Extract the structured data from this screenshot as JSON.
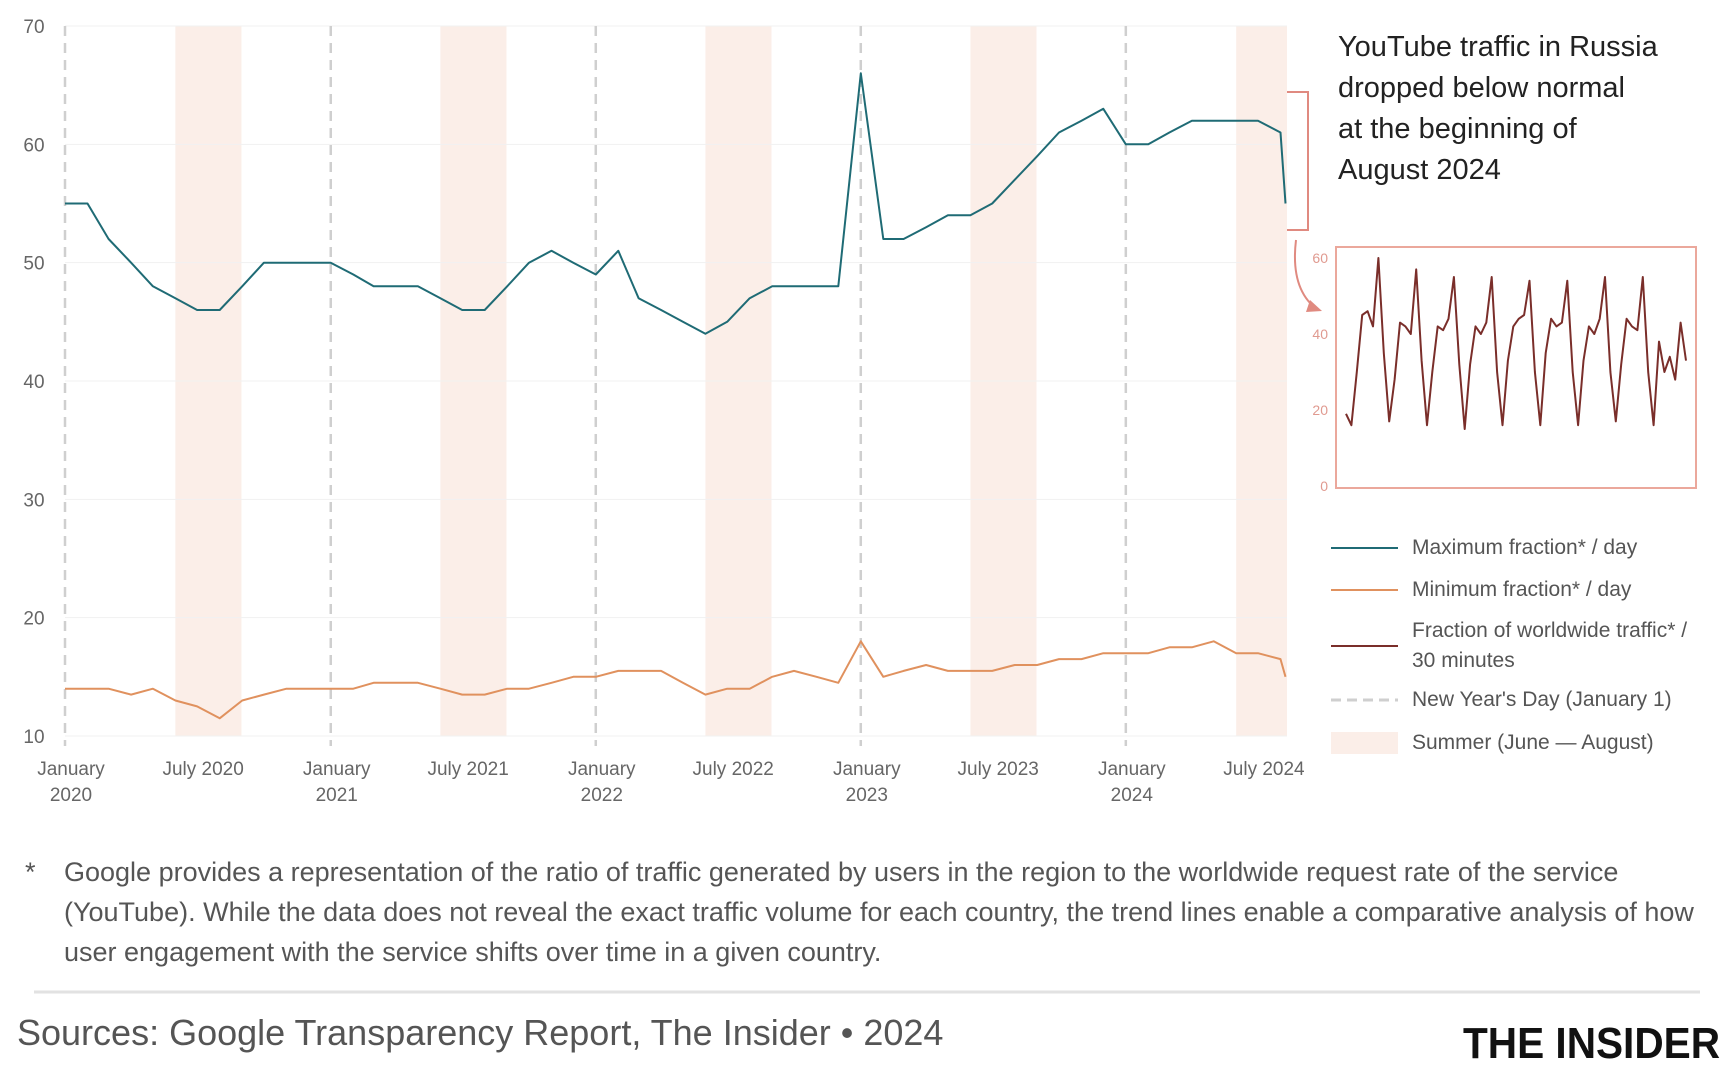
{
  "chart_data": [
    {
      "type": "line",
      "title": [
        "YouTube traffic in Russia",
        "dropped below normal",
        "at the beginning of",
        "August 2024"
      ],
      "x": [
        "2020-01-01",
        "2020-02-01",
        "2020-03-01",
        "2020-04-01",
        "2020-05-01",
        "2020-06-01",
        "2020-07-01",
        "2020-08-01",
        "2020-09-01",
        "2020-10-01",
        "2020-11-01",
        "2020-12-01",
        "2021-01-01",
        "2021-02-01",
        "2021-03-01",
        "2021-04-01",
        "2021-05-01",
        "2021-06-01",
        "2021-07-01",
        "2021-08-01",
        "2021-09-01",
        "2021-10-01",
        "2021-11-01",
        "2021-12-01",
        "2022-01-01",
        "2022-02-01",
        "2022-03-01",
        "2022-04-01",
        "2022-05-01",
        "2022-06-01",
        "2022-07-01",
        "2022-08-01",
        "2022-09-01",
        "2022-10-01",
        "2022-11-01",
        "2022-12-01",
        "2023-01-01",
        "2023-02-01",
        "2023-03-01",
        "2023-04-01",
        "2023-05-01",
        "2023-06-01",
        "2023-07-01",
        "2023-08-01",
        "2023-09-01",
        "2023-10-01",
        "2023-11-01",
        "2023-12-01",
        "2024-01-01",
        "2024-02-01",
        "2024-03-01",
        "2024-04-01",
        "2024-05-01",
        "2024-06-01",
        "2024-07-01",
        "2024-08-01",
        "2024-08-08"
      ],
      "series": [
        {
          "name": "Maximum fraction* / day",
          "color": "#1f6b75",
          "values": [
            55,
            55,
            52,
            50,
            48,
            47,
            46,
            46,
            48,
            50,
            50,
            50,
            50,
            49,
            48,
            48,
            48,
            47,
            46,
            46,
            48,
            50,
            51,
            50,
            49,
            51,
            47,
            46,
            45,
            44,
            45,
            47,
            48,
            48,
            48,
            48,
            66,
            52,
            52,
            53,
            54,
            54,
            55,
            57,
            59,
            61,
            62,
            63,
            60,
            60,
            61,
            62,
            62,
            62,
            62,
            61,
            55
          ]
        },
        {
          "name": "Minimum fraction* / day",
          "color": "#e0915e",
          "values": [
            14,
            14,
            14,
            13.5,
            14,
            13,
            12.5,
            11.5,
            13,
            13.5,
            14,
            14,
            14,
            14,
            14.5,
            14.5,
            14.5,
            14,
            13.5,
            13.5,
            14,
            14,
            14.5,
            15,
            15,
            15.5,
            15.5,
            15.5,
            14.5,
            13.5,
            14,
            14,
            15,
            15.5,
            15,
            14.5,
            18,
            15,
            15.5,
            16,
            15.5,
            15.5,
            15.5,
            16,
            16,
            16.5,
            16.5,
            17,
            17,
            17,
            17.5,
            17.5,
            18,
            17,
            17,
            16.5,
            15
          ]
        }
      ],
      "xlim": [
        "2020-01-01",
        "2024-08-10"
      ],
      "xticks": [
        {
          "value": "2020-01-01",
          "label": "January 2020"
        },
        {
          "value": "2020-07-01",
          "label": "July 2020"
        },
        {
          "value": "2021-01-01",
          "label": "January 2021"
        },
        {
          "value": "2021-07-01",
          "label": "July 2021"
        },
        {
          "value": "2022-01-01",
          "label": "January 2022"
        },
        {
          "value": "2022-07-01",
          "label": "July 2022"
        },
        {
          "value": "2023-01-01",
          "label": "January 2023"
        },
        {
          "value": "2023-07-01",
          "label": "July 2023"
        },
        {
          "value": "2024-01-01",
          "label": "January 2024"
        },
        {
          "value": "2024-07-01",
          "label": "July 2024"
        }
      ],
      "ylim": [
        10,
        70
      ],
      "yticks": [
        10,
        20,
        30,
        40,
        50,
        60,
        70
      ],
      "grid": true,
      "new_year_name": "New Year's Day (January 1)",
      "new_year_lines": [
        "2020-01-01",
        "2021-01-01",
        "2022-01-01",
        "2023-01-01",
        "2024-01-01"
      ],
      "summer_name": "Summer (June — August)",
      "summers": [
        [
          "2020-06-01",
          "2020-08-31"
        ],
        [
          "2021-06-01",
          "2021-08-31"
        ],
        [
          "2022-06-01",
          "2022-08-31"
        ],
        [
          "2023-06-01",
          "2023-08-31"
        ],
        [
          "2024-06-01",
          "2024-08-31"
        ]
      ],
      "summer_color": "#fbeee8",
      "footnote": {
        "marker": "*",
        "text": "Google provides a representation of the ratio of traffic generated by users in the region to the worldwide request rate of the service (YouTube). While the data does not reveal the exact traffic volume for each country, the trend lines enable a comparative analysis of how user engagement with the service shifts over time in a given country."
      },
      "source": "Sources: Google Transparency Report, The Insider • 2024",
      "logo": "THE INSIDER"
    },
    {
      "type": "line",
      "series": [
        {
          "name": "Fraction of worldwide traffic* / 30 minutes",
          "color": "#7a2e2a",
          "values": [
            19,
            16,
            30,
            45,
            46,
            42,
            60,
            35,
            17,
            28,
            43,
            42,
            40,
            57,
            33,
            16,
            30,
            42,
            41,
            44,
            55,
            32,
            15,
            32,
            42,
            40,
            43,
            55,
            30,
            16,
            33,
            42,
            44,
            45,
            54,
            30,
            16,
            35,
            44,
            42,
            43,
            54,
            30,
            16,
            33,
            42,
            40,
            44,
            55,
            30,
            17,
            32,
            44,
            42,
            41,
            55,
            30,
            16,
            38,
            30,
            34,
            28,
            43,
            33
          ]
        }
      ],
      "ylim": [
        0,
        60
      ],
      "yticks": [
        0,
        20,
        40,
        60
      ]
    }
  ]
}
